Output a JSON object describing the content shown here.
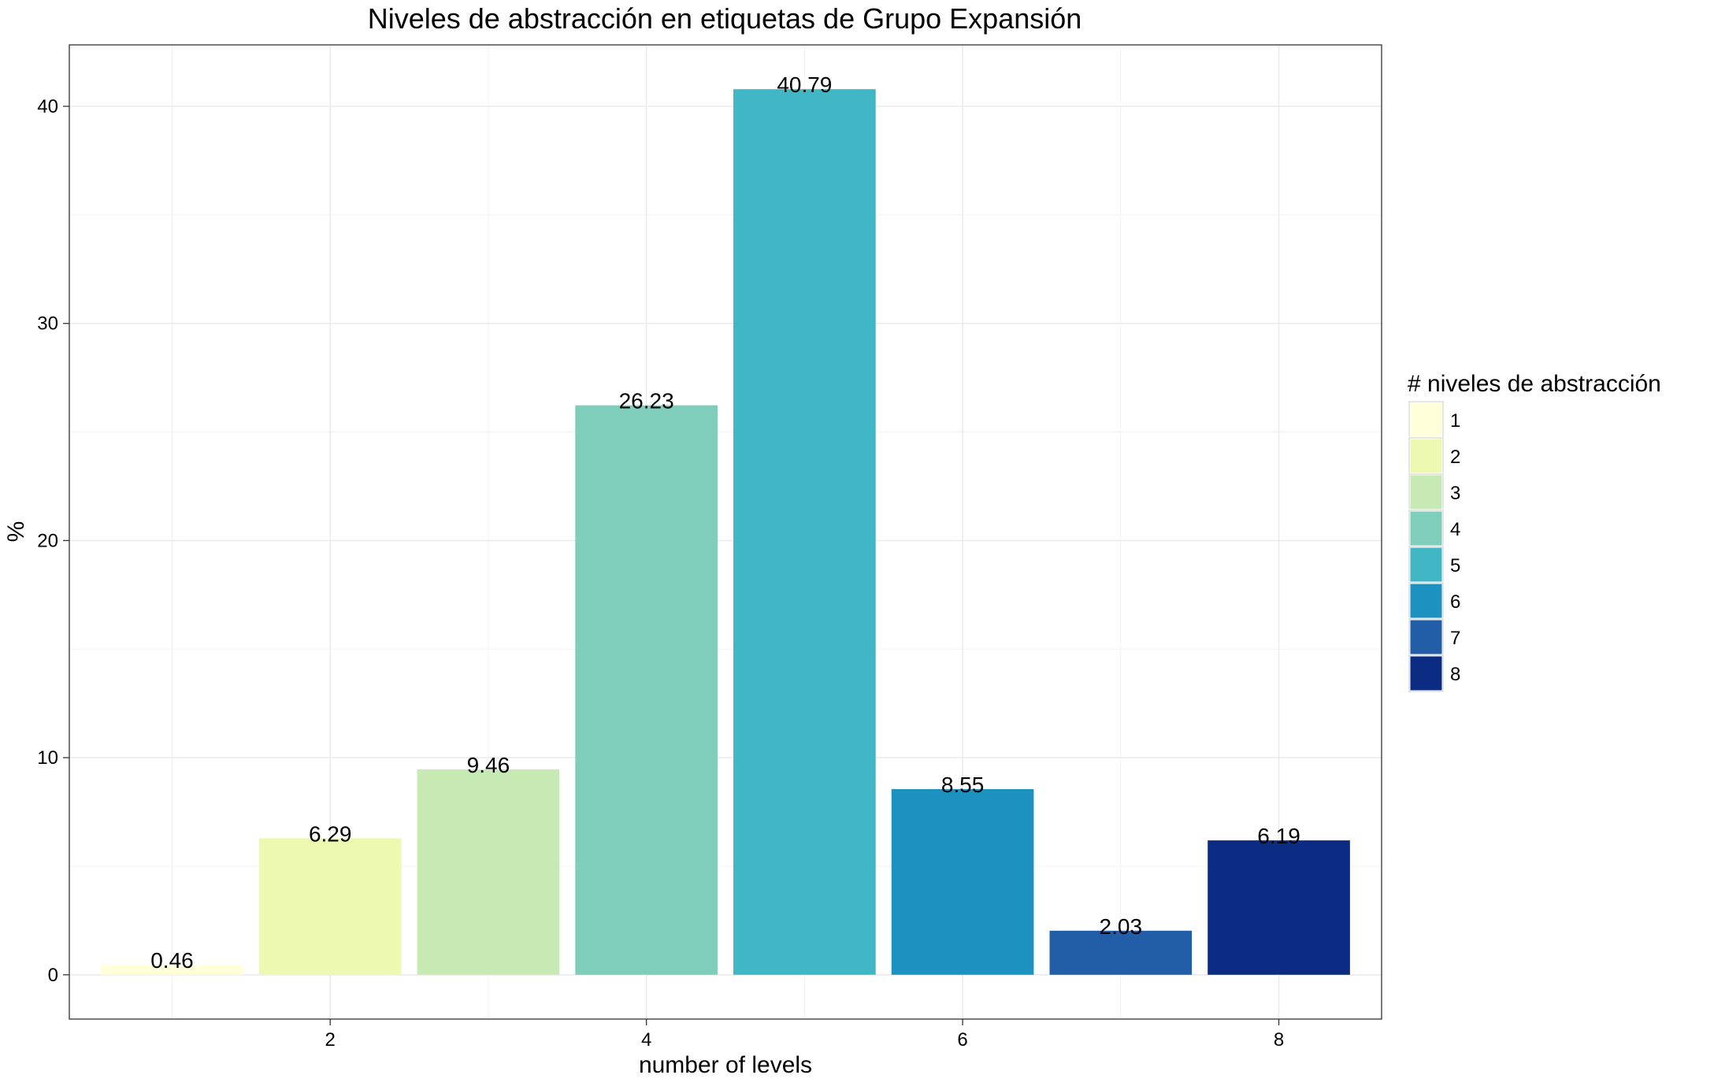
{
  "chart_data": {
    "type": "bar",
    "title": "Niveles de abstracción en etiquetas de Grupo Expansión",
    "xlabel": "number of levels",
    "ylabel": "%",
    "categories": [
      1,
      2,
      3,
      4,
      5,
      6,
      7,
      8
    ],
    "values": [
      0.46,
      6.29,
      9.46,
      26.23,
      40.79,
      8.55,
      2.03,
      6.19
    ],
    "value_labels": [
      "0.46",
      "6.29",
      "9.46",
      "26.23",
      "40.79",
      "8.55",
      "2.03",
      "6.19"
    ],
    "x_ticks": [
      "2",
      "4",
      "6",
      "8"
    ],
    "x_tick_values": [
      2,
      4,
      6,
      8
    ],
    "y_ticks": [
      "0",
      "10",
      "20",
      "30",
      "40"
    ],
    "y_tick_values": [
      0,
      10,
      20,
      30,
      40
    ],
    "xlim": [
      0.35,
      8.65
    ],
    "ylim": [
      -2.0396,
      42.8295
    ],
    "grid": true,
    "legend": {
      "title": "# niveles de abstracción",
      "placement": "right",
      "items": [
        "1",
        "2",
        "3",
        "4",
        "5",
        "6",
        "7",
        "8"
      ]
    },
    "colors": [
      "#FFFFD9",
      "#EDF8B1",
      "#C7E9B4",
      "#7FCDBB",
      "#41B6C4",
      "#1D91C0",
      "#225EA8",
      "#0C2C84"
    ]
  }
}
